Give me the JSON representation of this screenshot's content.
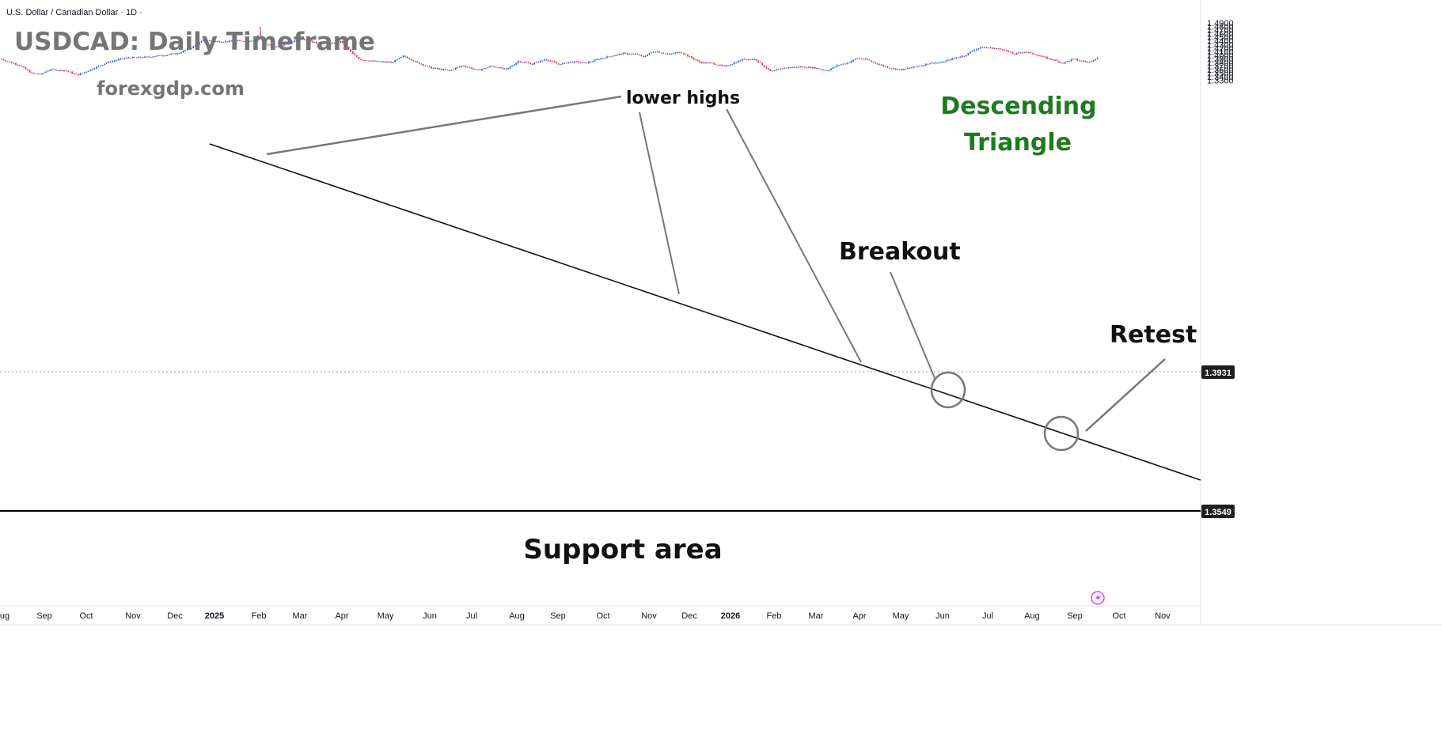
{
  "header": {
    "symbol_label": "U.S. Dollar / Canadian Dollar · 1D ·",
    "title": "USDCAD: Daily Timeframe",
    "watermark": "forexgdp.com"
  },
  "colors": {
    "bull": "#2962ff",
    "bear": "#f23645",
    "trendline": "#111111",
    "pointer": "#777777",
    "title": "#757575",
    "accent_green": "#1f7a1f"
  },
  "annotations": {
    "lower_highs": "lower highs",
    "pattern_line1": "Descending",
    "pattern_line2": "Triangle",
    "breakout": "Breakout",
    "retest": "Retest",
    "support": "Support area"
  },
  "chart_data": {
    "type": "candlestick",
    "y_axis": {
      "range": [
        1.3269,
        1.4941
      ],
      "ticks": [
        "1.4900",
        "1.4800",
        "1.4700",
        "1.4600",
        "1.4500",
        "1.4400",
        "1.4300",
        "1.4200",
        "1.4100",
        "1.4000",
        "1.3900",
        "1.3800",
        "1.3700",
        "1.3600",
        "1.3500",
        "1.3400",
        "1.3300"
      ]
    },
    "x_axis": {
      "ticks": [
        "ug",
        "Sep",
        "Oct",
        "Nov",
        "Dec",
        "2025",
        "Feb",
        "Mar",
        "Apr",
        "May",
        "Jun",
        "Jul",
        "Aug",
        "Sep",
        "Oct",
        "Nov",
        "Dec",
        "2026",
        "Feb",
        "Mar",
        "Apr",
        "May",
        "Jun",
        "Jul",
        "Aug",
        "Sep",
        "Oct",
        "Nov"
      ]
    },
    "last_price": "1.3931",
    "support_level": "1.3549",
    "trendline": {
      "start": [
        "Jan",
        1.4565
      ],
      "end": [
        "Nov",
        1.363
      ]
    },
    "path_keypoints": [
      [
        0,
        1.39
      ],
      [
        25,
        1.372
      ],
      [
        40,
        1.35
      ],
      [
        52,
        1.347
      ],
      [
        62,
        1.36
      ],
      [
        82,
        1.358
      ],
      [
        98,
        1.345
      ],
      [
        110,
        1.356
      ],
      [
        135,
        1.38
      ],
      [
        160,
        1.393
      ],
      [
        185,
        1.395
      ],
      [
        205,
        1.4
      ],
      [
        225,
        1.405
      ],
      [
        245,
        1.425
      ],
      [
        257,
        1.442
      ],
      [
        280,
        1.438
      ],
      [
        305,
        1.44
      ],
      [
        322,
        1.442
      ],
      [
        327,
        1.458
      ],
      [
        335,
        1.43
      ],
      [
        352,
        1.423
      ],
      [
        365,
        1.435
      ],
      [
        380,
        1.447
      ],
      [
        398,
        1.435
      ],
      [
        415,
        1.431
      ],
      [
        432,
        1.438
      ],
      [
        445,
        1.405
      ],
      [
        455,
        1.388
      ],
      [
        475,
        1.383
      ],
      [
        495,
        1.38
      ],
      [
        510,
        1.398
      ],
      [
        525,
        1.382
      ],
      [
        545,
        1.365
      ],
      [
        568,
        1.357
      ],
      [
        585,
        1.372
      ],
      [
        603,
        1.358
      ],
      [
        622,
        1.37
      ],
      [
        640,
        1.36
      ],
      [
        655,
        1.384
      ],
      [
        672,
        1.376
      ],
      [
        690,
        1.389
      ],
      [
        705,
        1.375
      ],
      [
        725,
        1.382
      ],
      [
        740,
        1.378
      ],
      [
        760,
        1.392
      ],
      [
        787,
        1.405
      ],
      [
        805,
        1.403
      ],
      [
        812,
        1.395
      ],
      [
        827,
        1.412
      ],
      [
        845,
        1.402
      ],
      [
        860,
        1.41
      ],
      [
        870,
        1.397
      ],
      [
        885,
        1.38
      ],
      [
        900,
        1.378
      ],
      [
        915,
        1.368
      ],
      [
        940,
        1.39
      ],
      [
        955,
        1.388
      ],
      [
        965,
        1.37
      ],
      [
        975,
        1.354
      ],
      [
        990,
        1.365
      ],
      [
        1010,
        1.368
      ],
      [
        1030,
        1.365
      ],
      [
        1045,
        1.357
      ],
      [
        1058,
        1.372
      ],
      [
        1072,
        1.38
      ],
      [
        1083,
        1.392
      ],
      [
        1095,
        1.388
      ],
      [
        1110,
        1.375
      ],
      [
        1125,
        1.364
      ],
      [
        1140,
        1.36
      ],
      [
        1160,
        1.37
      ],
      [
        1175,
        1.378
      ],
      [
        1190,
        1.38
      ],
      [
        1205,
        1.392
      ],
      [
        1220,
        1.4
      ],
      [
        1230,
        1.415
      ],
      [
        1240,
        1.422
      ],
      [
        1255,
        1.42
      ],
      [
        1270,
        1.415
      ],
      [
        1280,
        1.403
      ],
      [
        1295,
        1.41
      ],
      [
        1310,
        1.401
      ],
      [
        1322,
        1.392
      ],
      [
        1333,
        1.386
      ],
      [
        1343,
        1.378
      ],
      [
        1355,
        1.389
      ],
      [
        1368,
        1.384
      ],
      [
        1375,
        1.38
      ],
      [
        1383,
        1.39
      ],
      [
        1388,
        1.3931
      ]
    ]
  }
}
